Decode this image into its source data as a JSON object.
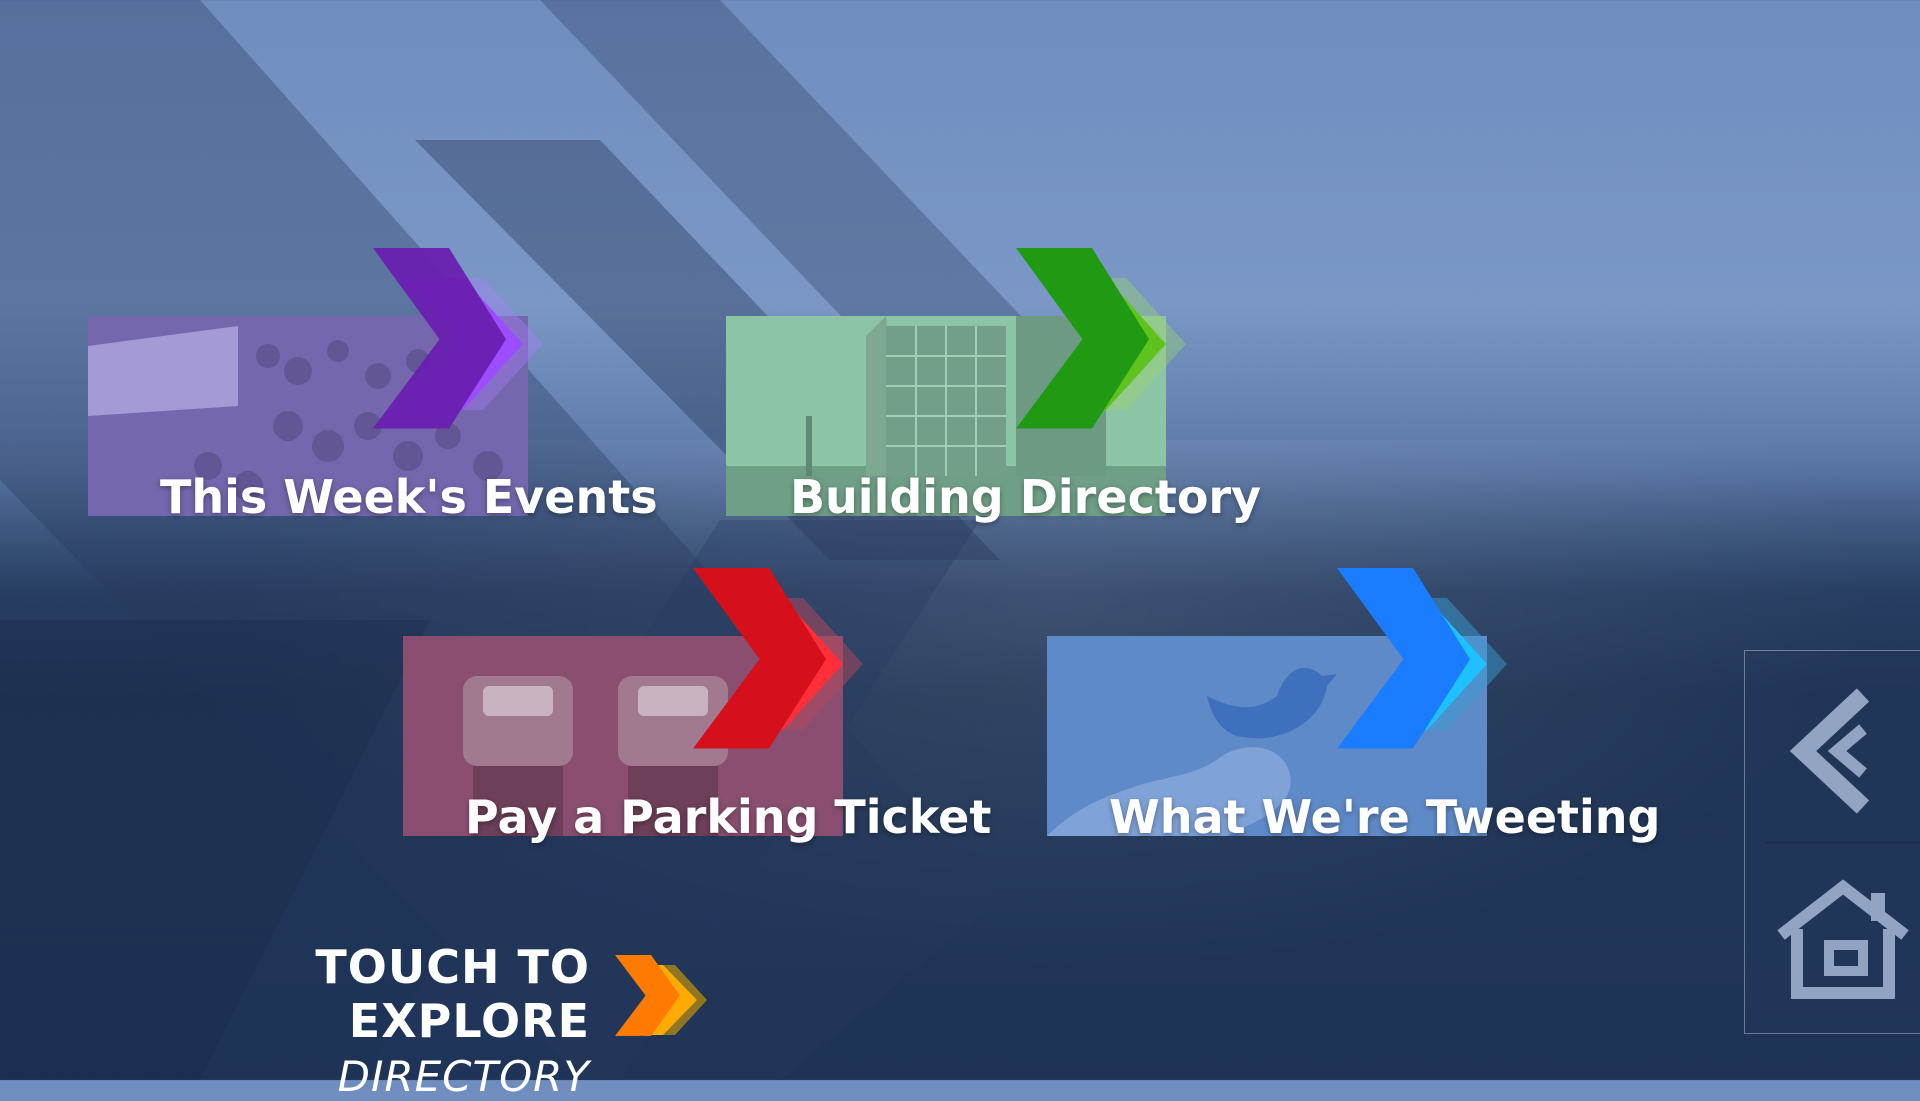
{
  "tiles": [
    {
      "label": "This Week's Events",
      "accent": "#8b3dff",
      "tint": "#7b6ab8",
      "photo": "crowd at outdoor event"
    },
    {
      "label": "Building Directory",
      "accent": "#33b31a",
      "tint": "#8cc7a8",
      "photo": "glass office building"
    },
    {
      "label": "Pay a Parking Ticket",
      "accent": "#ee1c25",
      "tint": "#8a4f6d",
      "photo": "parking meters"
    },
    {
      "label": "What We're Tweeting",
      "accent": "#1a8cff",
      "tint": "#5d86c6",
      "photo": "hand holding bird"
    }
  ],
  "explore": {
    "line1": "TOUCH TO EXPLORE",
    "line2": "DIRECTORY",
    "accent": "#ff9900"
  },
  "sidebar": {
    "back_icon": "back-chevron-icon",
    "home_icon": "home-icon"
  },
  "colors": {
    "sky": "#7a97c6",
    "sea": "#22395d"
  }
}
